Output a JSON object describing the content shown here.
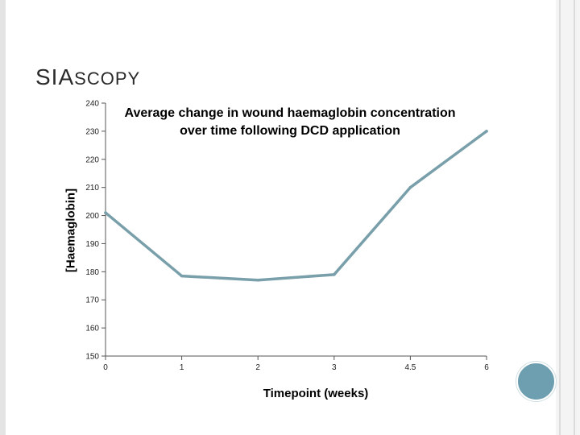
{
  "slide": {
    "title_main": "SIA",
    "title_rest": "SCOPY",
    "line_color": "#789faa",
    "accent_circle_color": "#6e9fb0"
  },
  "chart_data": {
    "type": "line",
    "title_lines": [
      "Average change in wound haemaglobin concentration",
      "over time following DCD application"
    ],
    "xlabel": "Timepoint (weeks)",
    "ylabel": "[Haemaglobin]",
    "categories": [
      "0",
      "1",
      "2",
      "3",
      "4.5",
      "6"
    ],
    "ylim": [
      150,
      240
    ],
    "yticks": [
      240,
      230,
      220,
      210,
      200,
      190,
      180,
      170,
      160,
      150
    ],
    "grid": false,
    "series": [
      {
        "values": [
          201,
          178.5,
          177,
          179,
          210,
          230
        ]
      }
    ]
  }
}
